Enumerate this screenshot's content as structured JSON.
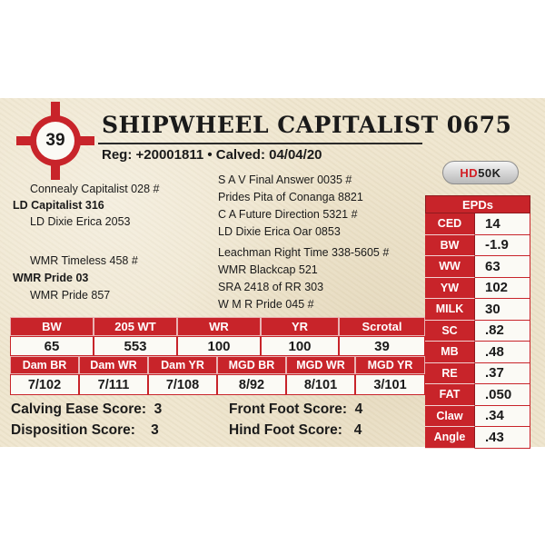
{
  "lot": {
    "number": "39"
  },
  "animal": {
    "name": "SHIPWHEEL CAPITALIST 0675",
    "reg_line": "Reg: +20001811 • Calved: 04/04/20"
  },
  "logo": {
    "hd": "HD",
    "k": "50K"
  },
  "pedigree": {
    "sire_sire": "Connealy Capitalist 028 #",
    "sire": "LD Capitalist 316",
    "sire_dam": "LD Dixie Erica 2053",
    "dam_sire": "WMR Timeless 458 #",
    "dam": "WMR Pride 03",
    "dam_dam": "WMR Pride 857",
    "sss": "S A V Final Answer 0035 #",
    "ssd": "Prides Pita of Conanga 8821",
    "sds": "C A Future Direction 5321 #",
    "sdd": "LD Dixie Erica Oar 0853",
    "dss": "Leachman Right Time 338-5605 #",
    "dsd": "WMR Blackcap 521",
    "dds": "SRA 2418 of RR 303",
    "ddd": "W M R Pride 045 #"
  },
  "epds": {
    "title": "EPDs",
    "rows": [
      {
        "label": "CED",
        "value": "14"
      },
      {
        "label": "BW",
        "value": "-1.9"
      },
      {
        "label": "WW",
        "value": "63"
      },
      {
        "label": "YW",
        "value": "102"
      },
      {
        "label": "MILK",
        "value": "30"
      },
      {
        "label": "SC",
        "value": ".82"
      },
      {
        "label": "MB",
        "value": ".48"
      },
      {
        "label": "RE",
        "value": ".37"
      },
      {
        "label": "FAT",
        "value": ".050"
      },
      {
        "label": "Claw",
        "value": ".34"
      },
      {
        "label": "Angle",
        "value": ".43"
      }
    ]
  },
  "performance": {
    "headers": [
      "BW",
      "205 WT",
      "WR",
      "YR",
      "Scrotal"
    ],
    "values": [
      "65",
      "553",
      "100",
      "100",
      "39"
    ]
  },
  "ratios": {
    "headers": [
      "Dam BR",
      "Dam WR",
      "Dam YR",
      "MGD BR",
      "MGD WR",
      "MGD YR"
    ],
    "values": [
      "7/102",
      "7/111",
      "7/108",
      "8/92",
      "8/101",
      "3/101"
    ]
  },
  "scores": {
    "calving_ease": "Calving Ease Score:  3",
    "disposition": "Disposition Score:    3",
    "front_foot": "Front Foot Score:  4",
    "hind_foot": "Hind Foot Score:   4"
  },
  "colors": {
    "accent": "#c8242a",
    "card": "#efe6cf"
  }
}
